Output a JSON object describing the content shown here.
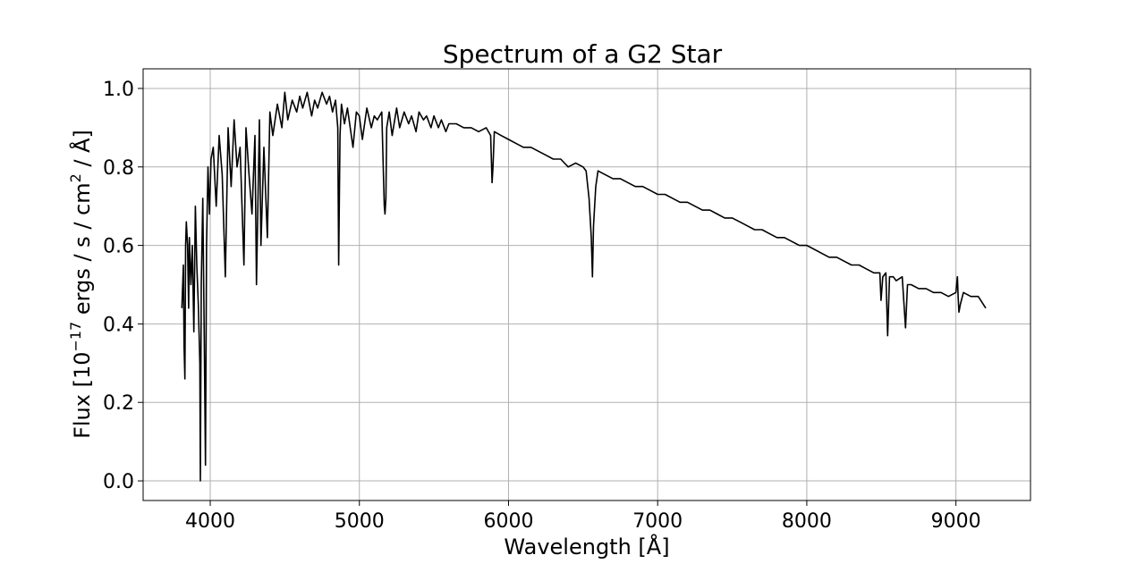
{
  "chart_data": {
    "type": "line",
    "title": "Spectrum of a G2 Star",
    "xlabel": "Wavelength [Å]",
    "ylabel": {
      "prefix": "Flux [10",
      "exponent": "−17",
      "middle": " ergs / s / cm",
      "exponent2": "2",
      "suffix": " / Å]"
    },
    "xlim": [
      3550,
      9500
    ],
    "ylim": [
      -0.05,
      1.05
    ],
    "xticks": [
      4000,
      5000,
      6000,
      7000,
      8000,
      9000
    ],
    "xtick_labels": [
      "4000",
      "5000",
      "6000",
      "7000",
      "8000",
      "9000"
    ],
    "yticks": [
      0.0,
      0.2,
      0.4,
      0.6,
      0.8,
      1.0
    ],
    "ytick_labels": [
      "0.0",
      "0.2",
      "0.4",
      "0.6",
      "0.8",
      "1.0"
    ],
    "grid": true,
    "series_color": "#000000",
    "series": [
      {
        "x": [
          3810,
          3820,
          3825,
          3830,
          3835,
          3840,
          3848,
          3855,
          3860,
          3870,
          3880,
          3890,
          3900,
          3910,
          3920,
          3930,
          3934,
          3940,
          3950,
          3960,
          3968,
          3975,
          3985,
          3995,
          4005,
          4020,
          4040,
          4060,
          4080,
          4101,
          4120,
          4140,
          4160,
          4180,
          4200,
          4226,
          4240,
          4260,
          4280,
          4300,
          4310,
          4330,
          4340,
          4360,
          4383,
          4400,
          4420,
          4450,
          4480,
          4500,
          4520,
          4550,
          4580,
          4600,
          4620,
          4650,
          4680,
          4700,
          4720,
          4750,
          4780,
          4800,
          4820,
          4840,
          4855,
          4861,
          4870,
          4880,
          4900,
          4920,
          4957,
          4980,
          5000,
          5020,
          5050,
          5080,
          5100,
          5120,
          5150,
          5167,
          5172,
          5178,
          5183,
          5200,
          5220,
          5250,
          5270,
          5300,
          5330,
          5350,
          5380,
          5400,
          5430,
          5450,
          5480,
          5500,
          5530,
          5550,
          5580,
          5600,
          5650,
          5700,
          5750,
          5800,
          5850,
          5880,
          5890,
          5896,
          5905,
          5950,
          6000,
          6050,
          6100,
          6150,
          6200,
          6250,
          6300,
          6350,
          6400,
          6450,
          6500,
          6520,
          6540,
          6555,
          6563,
          6570,
          6585,
          6600,
          6650,
          6700,
          6750,
          6800,
          6850,
          6900,
          6950,
          7000,
          7050,
          7100,
          7150,
          7200,
          7250,
          7300,
          7350,
          7400,
          7450,
          7500,
          7550,
          7600,
          7650,
          7700,
          7750,
          7800,
          7850,
          7900,
          7950,
          8000,
          8050,
          8100,
          8150,
          8200,
          8250,
          8300,
          8350,
          8400,
          8450,
          8490,
          8498,
          8510,
          8530,
          8542,
          8555,
          8580,
          8600,
          8640,
          8662,
          8675,
          8700,
          8750,
          8800,
          8850,
          8900,
          8950,
          9000,
          9010,
          9015,
          9020,
          9030,
          9050,
          9100,
          9150,
          9200
        ],
        "y": [
          0.44,
          0.55,
          0.34,
          0.26,
          0.6,
          0.66,
          0.6,
          0.44,
          0.62,
          0.5,
          0.6,
          0.38,
          0.7,
          0.55,
          0.45,
          0.3,
          0.0,
          0.5,
          0.72,
          0.35,
          0.04,
          0.6,
          0.8,
          0.68,
          0.82,
          0.85,
          0.7,
          0.88,
          0.78,
          0.52,
          0.9,
          0.75,
          0.92,
          0.8,
          0.85,
          0.55,
          0.9,
          0.78,
          0.68,
          0.88,
          0.5,
          0.92,
          0.6,
          0.85,
          0.62,
          0.94,
          0.88,
          0.96,
          0.9,
          0.99,
          0.92,
          0.97,
          0.94,
          0.98,
          0.95,
          0.99,
          0.93,
          0.97,
          0.95,
          0.99,
          0.96,
          0.98,
          0.94,
          0.97,
          0.9,
          0.55,
          0.88,
          0.96,
          0.91,
          0.95,
          0.85,
          0.94,
          0.93,
          0.87,
          0.95,
          0.9,
          0.93,
          0.92,
          0.94,
          0.7,
          0.68,
          0.72,
          0.9,
          0.94,
          0.88,
          0.95,
          0.9,
          0.94,
          0.91,
          0.93,
          0.89,
          0.94,
          0.92,
          0.93,
          0.9,
          0.93,
          0.9,
          0.92,
          0.89,
          0.91,
          0.91,
          0.9,
          0.9,
          0.89,
          0.9,
          0.88,
          0.76,
          0.8,
          0.89,
          0.88,
          0.87,
          0.86,
          0.85,
          0.85,
          0.84,
          0.83,
          0.82,
          0.82,
          0.8,
          0.81,
          0.8,
          0.79,
          0.72,
          0.62,
          0.52,
          0.65,
          0.75,
          0.79,
          0.78,
          0.77,
          0.77,
          0.76,
          0.75,
          0.75,
          0.74,
          0.73,
          0.73,
          0.72,
          0.71,
          0.71,
          0.7,
          0.69,
          0.69,
          0.68,
          0.67,
          0.67,
          0.66,
          0.65,
          0.64,
          0.64,
          0.63,
          0.62,
          0.62,
          0.61,
          0.6,
          0.6,
          0.59,
          0.58,
          0.57,
          0.57,
          0.56,
          0.55,
          0.55,
          0.54,
          0.53,
          0.53,
          0.46,
          0.52,
          0.53,
          0.37,
          0.52,
          0.52,
          0.51,
          0.52,
          0.39,
          0.5,
          0.5,
          0.49,
          0.49,
          0.48,
          0.48,
          0.47,
          0.48,
          0.52,
          0.47,
          0.43,
          0.45,
          0.48,
          0.47,
          0.47,
          0.44
        ]
      }
    ]
  }
}
